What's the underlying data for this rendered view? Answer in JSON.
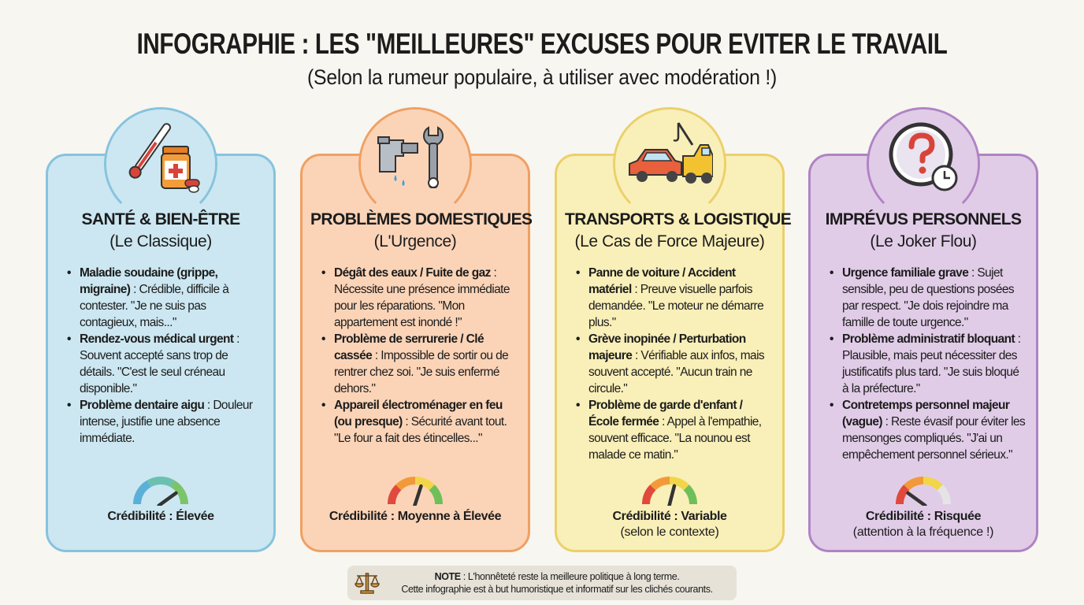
{
  "header": {
    "title": "INFOGRAPHIE : LES \"MEILLEURES\" EXCUSES POUR EVITER LE TRAVAIL",
    "subtitle": "(Selon la rumeur populaire, à utiliser avec modération !)"
  },
  "cards": [
    {
      "icon": "thermometer-pills-icon",
      "title": "SANTÉ & BIEN-ÊTRE",
      "subtitle": "(Le Classique)",
      "bg": "#cce7f1",
      "border": "#86c3de",
      "items": [
        {
          "bold": "Maladie soudaine (grippe, migraine)",
          "text": " : Crédible, difficile à contester. \"Je ne suis pas contagieux, mais...\""
        },
        {
          "bold": "Rendez-vous médical urgent",
          "text": " : Souvent accepté sans trop de détails. \"C'est le seul créneau disponible.\""
        },
        {
          "bold": "Problème dentaire aigu",
          "text": " : Douleur intense, justifie une absence immédiate."
        }
      ],
      "credibility": "Crédibilité : Élevée",
      "credibility_note": "",
      "gauge_level": 0.8,
      "gauge_colors": [
        "#5bb0d8",
        "#6cc0b0",
        "#7cc46a"
      ]
    },
    {
      "icon": "pipe-wrench-icon",
      "title": "PROBLÈMES DOMESTIQUES",
      "subtitle": "(L'Urgence)",
      "bg": "#fbd4b8",
      "border": "#f0a062",
      "items": [
        {
          "bold": "Dégât des eaux / Fuite de gaz",
          "text": " : Nécessite une présence immédiate pour les réparations. \"Mon appartement est inondé !\""
        },
        {
          "bold": "Problème de serrurerie / Clé cassée",
          "text": " : Impossible de sortir ou de rentrer chez soi. \"Je suis enfermé dehors.\""
        },
        {
          "bold": "Appareil électroménager en feu (ou presque)",
          "text": " : Sécurité avant tout. \"Le four a fait des étincelles...\""
        }
      ],
      "credibility": "Crédibilité : Moyenne à Élevée",
      "credibility_note": "",
      "gauge_level": 0.6,
      "gauge_colors": [
        "#e04a3c",
        "#f29a3a",
        "#f2d64a",
        "#6ebf5a"
      ]
    },
    {
      "icon": "car-tow-truck-icon",
      "title": "TRANSPORTS & LOGISTIQUE",
      "subtitle": "(Le Cas de Force Majeure)",
      "bg": "#f9efb8",
      "border": "#ebd06a",
      "items": [
        {
          "bold": "Panne de voiture / Accident matériel",
          "text": " : Preuve visuelle parfois demandée. \"Le moteur ne démarre plus.\""
        },
        {
          "bold": "Grève inopinée / Perturbation majeure",
          "text": " : Vérifiable aux infos, mais souvent accepté. \"Aucun train ne circule.\""
        },
        {
          "bold": "Problème de garde d'enfant / École fermée",
          "text": " : Appel à l'empathie, souvent efficace. \"La nounou est malade ce matin.\""
        }
      ],
      "credibility": "Crédibilité : Variable",
      "credibility_note": "(selon le contexte)",
      "gauge_level": 0.58,
      "gauge_colors": [
        "#e04a3c",
        "#f29a3a",
        "#f2d64a",
        "#6ebf5a"
      ]
    },
    {
      "icon": "question-clock-icon",
      "title": "IMPRÉVUS PERSONNELS",
      "subtitle": "(Le Joker Flou)",
      "bg": "#e1cce8",
      "border": "#b083c4",
      "items": [
        {
          "bold": "Urgence familiale grave",
          "text": " : Sujet sensible, peu de questions posées par respect. \"Je dois rejoindre ma famille de toute urgence.\""
        },
        {
          "bold": "Problème administratif bloquant",
          "text": " : Plausible, mais peut nécessiter des justificatifs plus tard. \"Je suis bloqué à la préfecture.\""
        },
        {
          "bold": "Contretemps personnel majeur (vague)",
          "text": " : Reste évasif pour éviter les mensonges compliqués. \"J'ai un empêchement personnel sérieux.\""
        }
      ],
      "credibility": "Crédibilité : Risquée",
      "credibility_note": "(attention à la fréquence !)",
      "gauge_level": 0.2,
      "gauge_colors": [
        "#e04a3c",
        "#f29a3a",
        "#f2d64a",
        "#e4e4e4"
      ]
    }
  ],
  "note": {
    "icon": "scales-icon",
    "label": "NOTE",
    "line1": " : L'honnêteté reste la meilleure politique à long terme.",
    "line2": "Cette infographie est à but humoristique et informatif sur les clichés courants."
  }
}
